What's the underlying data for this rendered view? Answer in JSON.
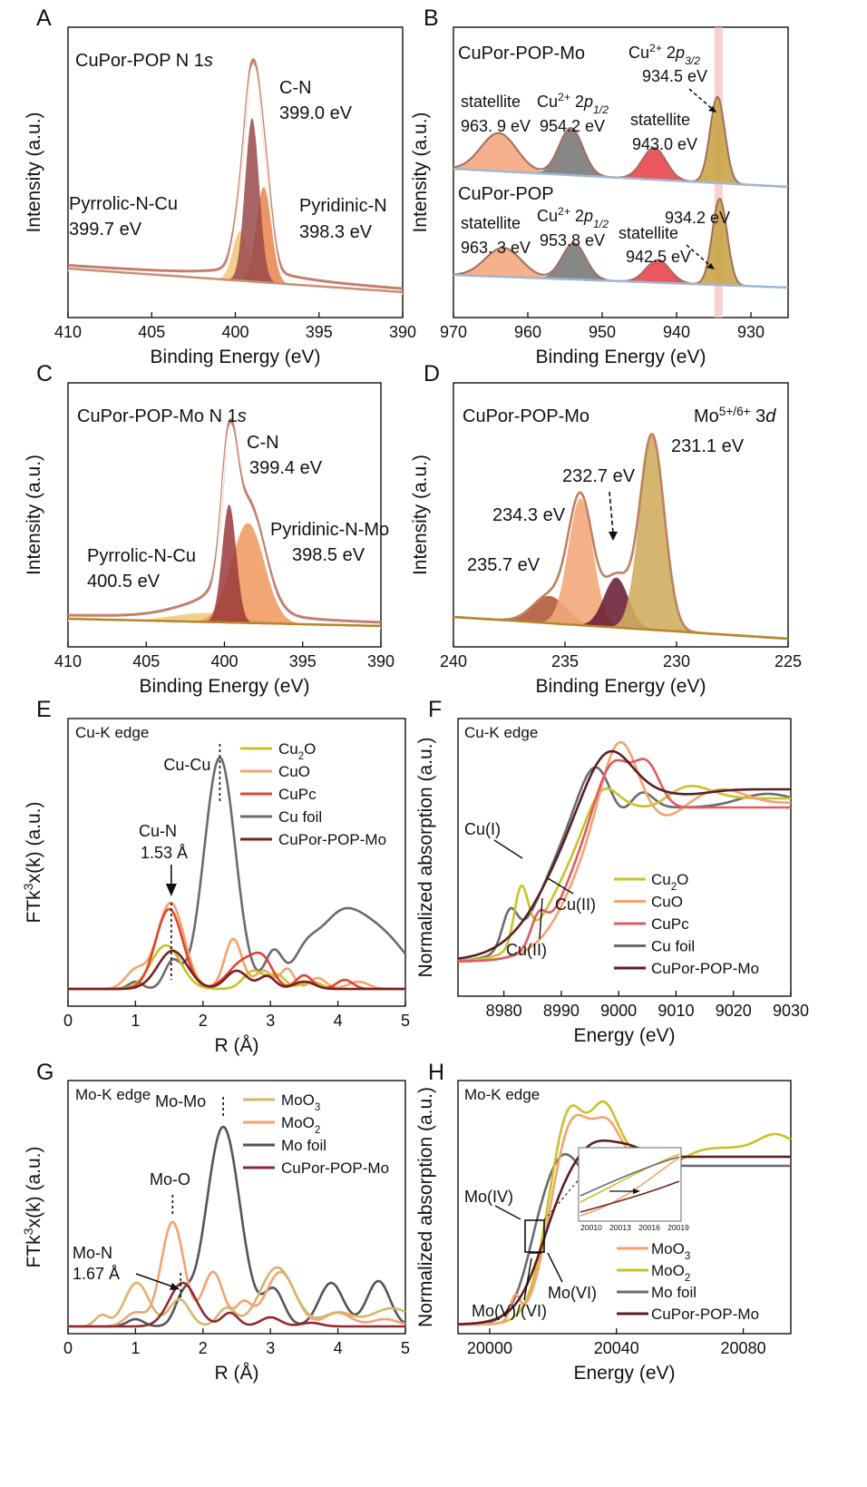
{
  "chart_data": [
    {
      "panel": "A",
      "type": "line",
      "title": "CuPor-POP N 1s",
      "xlabel": "Binding Energy (eV)",
      "ylabel": "Intensity (a.u.)",
      "xlim": [
        410,
        390
      ],
      "xticks": [
        410,
        405,
        400,
        395,
        390
      ],
      "peaks": [
        {
          "name": "C-N",
          "center": 399.0,
          "label": "399.0 eV"
        },
        {
          "name": "Pyrrolic-N-Cu",
          "center": 399.7,
          "label": "399.7 eV"
        },
        {
          "name": "Pyridinic-N",
          "center": 398.3,
          "label": "398.3 eV"
        }
      ]
    },
    {
      "panel": "B",
      "type": "line",
      "xlabel": "Binding Energy (eV)",
      "ylabel": "Intensity (a.u.)",
      "xlim": [
        970,
        925
      ],
      "xticks": [
        970,
        960,
        950,
        940,
        930
      ],
      "series": [
        {
          "name": "CuPor-POP-Mo",
          "peaks": [
            {
              "label": "statellite",
              "value": "963. 9 eV",
              "center": 963.9
            },
            {
              "label": "Cu2+ 2p1/2",
              "value": "954.2 eV",
              "center": 954.2
            },
            {
              "label": "statellite",
              "value": "943.0 eV",
              "center": 943.0
            },
            {
              "label": "Cu2+ 2p3/2",
              "value": "934.5 eV",
              "center": 934.5
            }
          ]
        },
        {
          "name": "CuPor-POP",
          "peaks": [
            {
              "label": "statellite",
              "value": "963. 3 eV",
              "center": 963.3
            },
            {
              "label": "Cu2+ 2p1/2",
              "value": "953.8 eV",
              "center": 953.8
            },
            {
              "label": "statellite",
              "value": "942.5 eV",
              "center": 942.5
            },
            {
              "label": "",
              "value": "934.2 eV",
              "center": 934.2
            }
          ]
        }
      ]
    },
    {
      "panel": "C",
      "type": "line",
      "title": "CuPor-POP-Mo  N 1s",
      "xlabel": "Binding Energy (eV)",
      "ylabel": "Intensity (a.u.)",
      "xlim": [
        410,
        390
      ],
      "xticks": [
        410,
        405,
        400,
        395,
        390
      ],
      "peaks": [
        {
          "name": "C-N",
          "center": 399.4,
          "label": "399.4 eV"
        },
        {
          "name": "Pyrrolic-N-Cu",
          "center": 400.5,
          "label": "400.5 eV"
        },
        {
          "name": "Pyridinic-N-Mo",
          "center": 398.5,
          "label": "398.5 eV"
        }
      ]
    },
    {
      "panel": "D",
      "type": "line",
      "title": "CuPor-POP-Mo",
      "annotation": "Mo5+/6+ 3d",
      "xlabel": "Binding Energy (eV)",
      "ylabel": "Intensity (a.u.)",
      "xlim": [
        240,
        225
      ],
      "xticks": [
        240,
        235,
        230,
        225
      ],
      "peaks": [
        {
          "center": 231.1,
          "label": "231.1 eV"
        },
        {
          "center": 232.7,
          "label": "232.7 eV"
        },
        {
          "center": 234.3,
          "label": "234.3 eV"
        },
        {
          "center": 235.7,
          "label": "235.7 eV"
        }
      ]
    },
    {
      "panel": "E",
      "type": "line",
      "annotation": "Cu-K edge",
      "xlabel": "R (Å)",
      "ylabel": "FTk3x(k) (a.u.)",
      "xlim": [
        0,
        5
      ],
      "xticks": [
        0,
        1,
        2,
        3,
        4,
        5
      ],
      "series": [
        {
          "name": "Cu2O",
          "color": "#c8c22a"
        },
        {
          "name": "CuO",
          "color": "#f5a26e"
        },
        {
          "name": "CuPc",
          "color": "#e0452f"
        },
        {
          "name": "Cu foil",
          "color": "#6b6b6b"
        },
        {
          "name": "CuPor-POP-Mo",
          "color": "#7a1e1e"
        }
      ],
      "labels": [
        {
          "text": "Cu-Cu",
          "x": 2.25
        },
        {
          "text": "Cu-N",
          "x": 1.53
        },
        {
          "text": "1.53 Å",
          "x": 1.53
        }
      ]
    },
    {
      "panel": "F",
      "type": "line",
      "annotation": "Cu-K edge",
      "xlabel": "Energy (eV)",
      "ylabel": "Normalized absorption (a.u.)",
      "xlim": [
        8972,
        9030
      ],
      "xticks": [
        8980,
        8990,
        9000,
        9010,
        9020,
        9030
      ],
      "series": [
        {
          "name": "Cu2O",
          "color": "#c8c22a"
        },
        {
          "name": "CuO",
          "color": "#f5a26e"
        },
        {
          "name": "CuPc",
          "color": "#e25a63"
        },
        {
          "name": "Cu foil",
          "color": "#6b6b6b"
        },
        {
          "name": "CuPor-POP-Mo",
          "color": "#5a1f22"
        }
      ],
      "labels": [
        {
          "text": "Cu(I)"
        },
        {
          "text": "Cu(II)"
        },
        {
          "text": "Cu(II)"
        }
      ]
    },
    {
      "panel": "G",
      "type": "line",
      "annotation": "Mo-K edge",
      "xlabel": "R (Å)",
      "ylabel": "FTk3x(k) (a.u.)",
      "xlim": [
        0,
        5
      ],
      "xticks": [
        0,
        1,
        2,
        3,
        4,
        5
      ],
      "series": [
        {
          "name": "MoO3",
          "color": "#d7b56d"
        },
        {
          "name": "MoO2",
          "color": "#f5a26e"
        },
        {
          "name": "Mo foil",
          "color": "#555555"
        },
        {
          "name": "CuPor-POP-Mo",
          "color": "#8e2a35"
        }
      ],
      "labels": [
        {
          "text": "Mo-Mo",
          "x": 2.3
        },
        {
          "text": "Mo-O",
          "x": 1.55
        },
        {
          "text": "Mo-N",
          "x": 1.67
        },
        {
          "text": "1.67 Å",
          "x": 1.67
        }
      ]
    },
    {
      "panel": "H",
      "type": "line",
      "annotation": "Mo-K edge",
      "xlabel": "Energy (eV)",
      "ylabel": "Normalized absorption (a.u.)",
      "xlim": [
        19990,
        20095
      ],
      "xticks": [
        20000,
        20040,
        20080
      ],
      "inset_xticks": [
        20010,
        20013,
        20016,
        20019
      ],
      "series": [
        {
          "name": "MoO3",
          "color": "#f5a26e"
        },
        {
          "name": "MoO2",
          "color": "#c8c22a"
        },
        {
          "name": "Mo foil",
          "color": "#6b6b6b"
        },
        {
          "name": "CuPor-POP-Mo",
          "color": "#5a1f22"
        }
      ],
      "labels": [
        {
          "text": "Mo(IV)"
        },
        {
          "text": "Mo(VI)"
        },
        {
          "text": "Mo(V)/(VI)"
        }
      ]
    }
  ]
}
